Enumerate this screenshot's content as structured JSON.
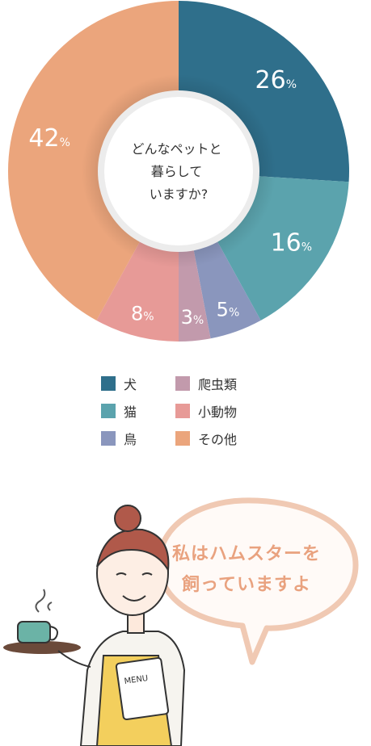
{
  "chart_data": {
    "type": "pie",
    "center_text": [
      "どんなペットと",
      "暮らして",
      "いますか?"
    ],
    "slices": [
      {
        "name": "犬",
        "value": 26,
        "label": "26",
        "color": "#2f6f8b"
      },
      {
        "name": "猫",
        "value": 16,
        "label": "16",
        "color": "#5ba3ad"
      },
      {
        "name": "鳥",
        "value": 5,
        "label": "5",
        "color": "#8a96bd"
      },
      {
        "name": "爬虫類",
        "value": 3,
        "label": "3",
        "color": "#c29aac"
      },
      {
        "name": "小動物",
        "value": 8,
        "label": "8",
        "color": "#e79a97"
      },
      {
        "name": "その他",
        "value": 42,
        "label": "42",
        "color": "#eba57c"
      }
    ],
    "unit": "%",
    "legend_order": [
      "犬",
      "猫",
      "鳥",
      "爬虫類",
      "小動物",
      "その他"
    ]
  },
  "speech_bubble": [
    "私はハムスターを",
    "飼っていますよ"
  ],
  "menu_label": "MENU"
}
